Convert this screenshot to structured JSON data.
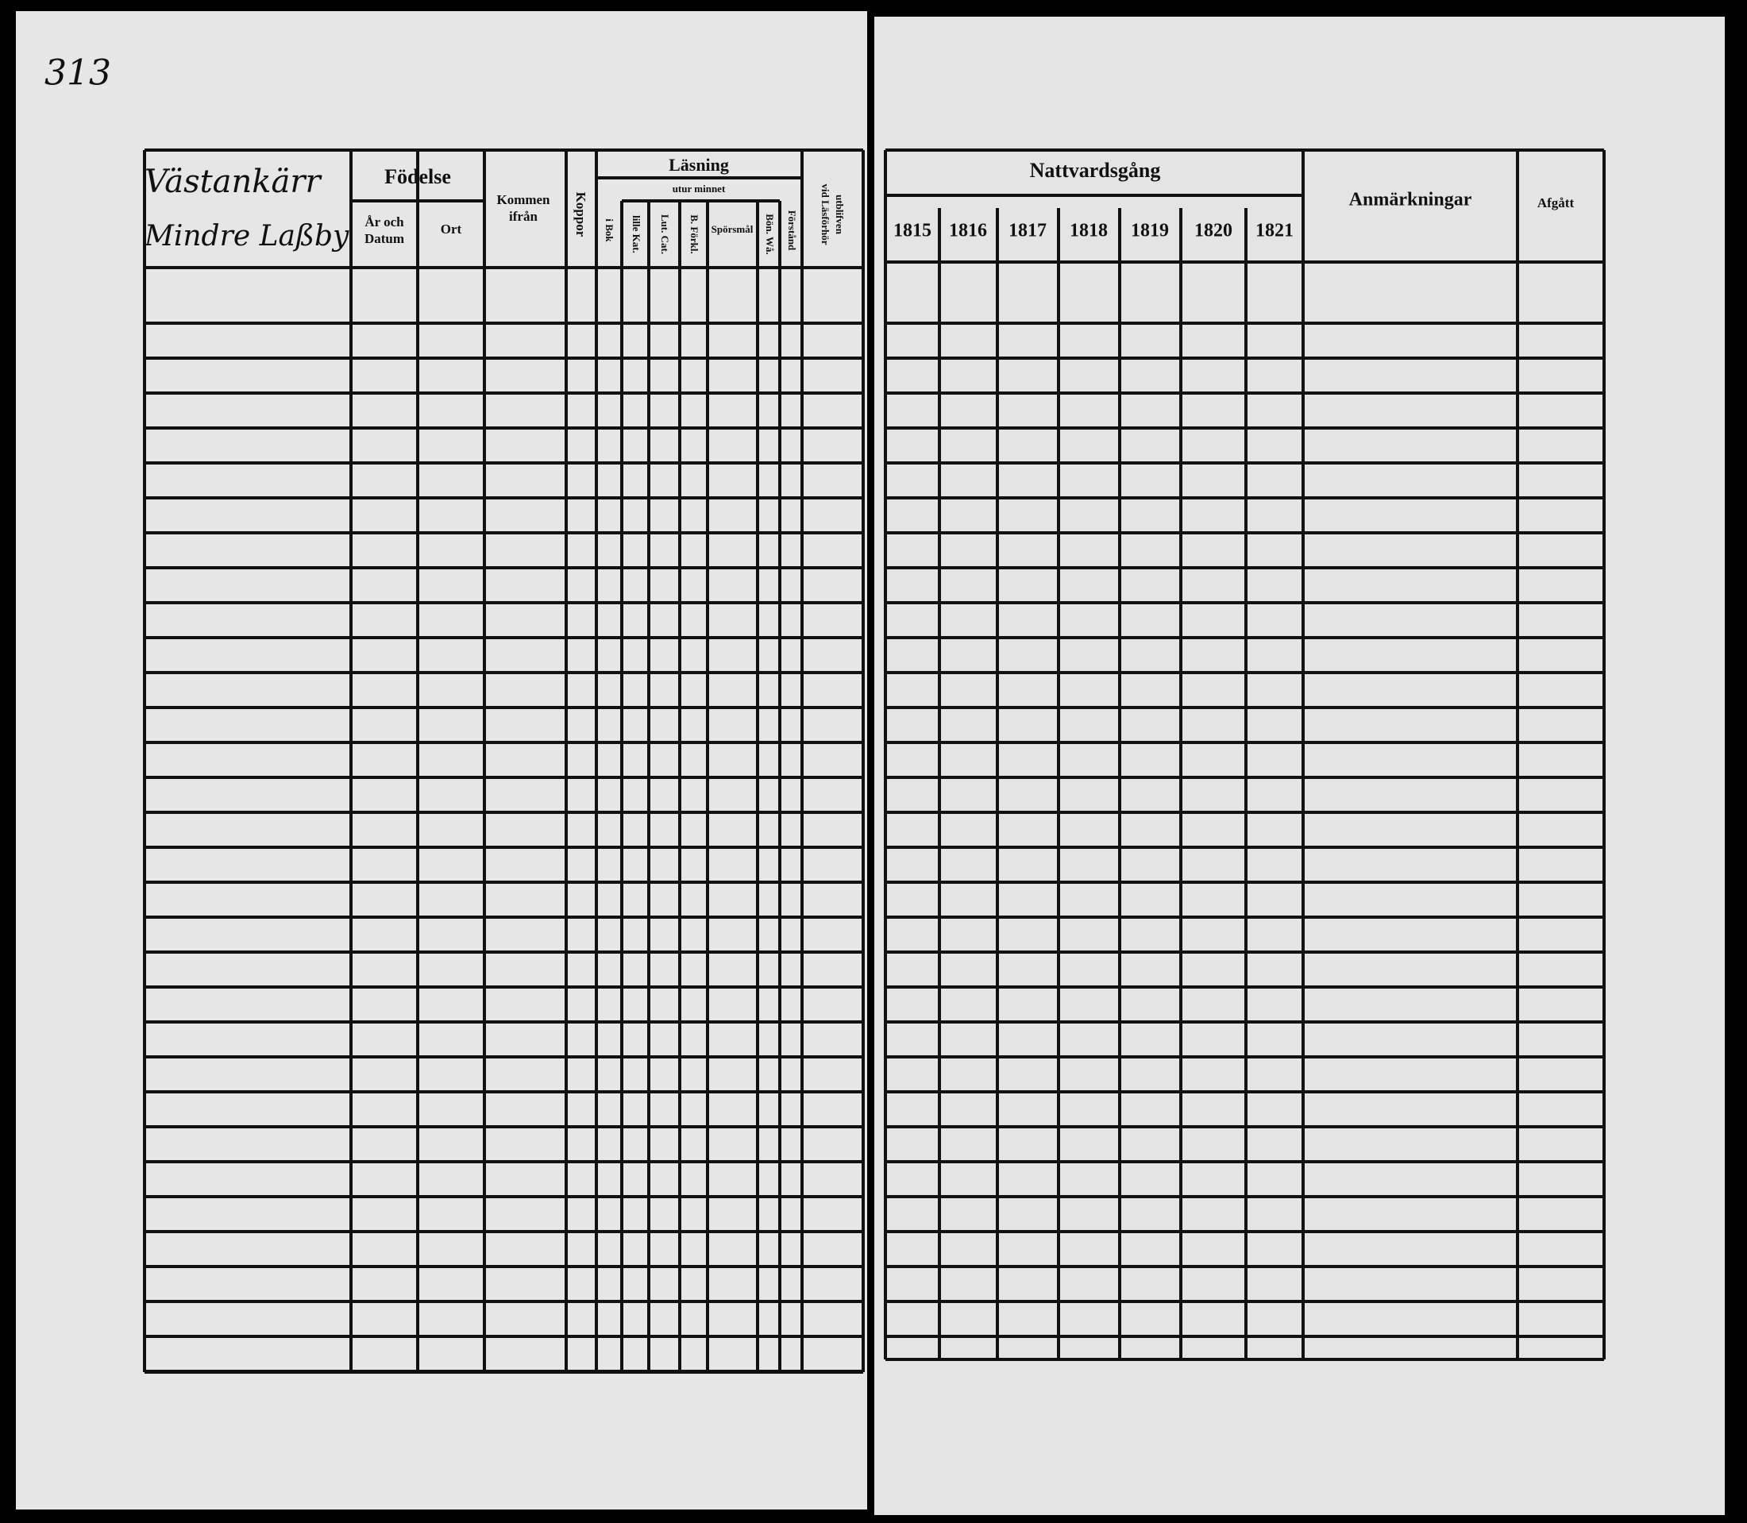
{
  "page_number": "313",
  "left_page": {
    "place": [
      "Västankärr",
      "Mindre Laßby"
    ],
    "birth": {
      "title": "Födelse",
      "date": [
        "År och",
        "Datum"
      ],
      "place": "Ort"
    },
    "came_from": [
      "Kommen",
      "ifrån"
    ],
    "smallpox": "Koppor",
    "reading": {
      "title": "Läsning",
      "by_heart": "utur minnet",
      "in_book": "i Bok",
      "small_cat": "lille Kat.",
      "luther_cat": "Lut. Cat.",
      "explanation": "B. Förkl.",
      "questions": "Spörsmål",
      "prayers": "Bön. Wå.",
      "understanding": "Förstånd"
    },
    "absent": [
      "vid Läsförhör",
      "utblifven"
    ]
  },
  "right_page": {
    "communion": {
      "title": "Nattvardsgång",
      "years": [
        "1815",
        "1816",
        "1817",
        "1818",
        "1819",
        "1820",
        "1821"
      ]
    },
    "remarks": "Anmärkningar",
    "departed": "Afgått"
  }
}
